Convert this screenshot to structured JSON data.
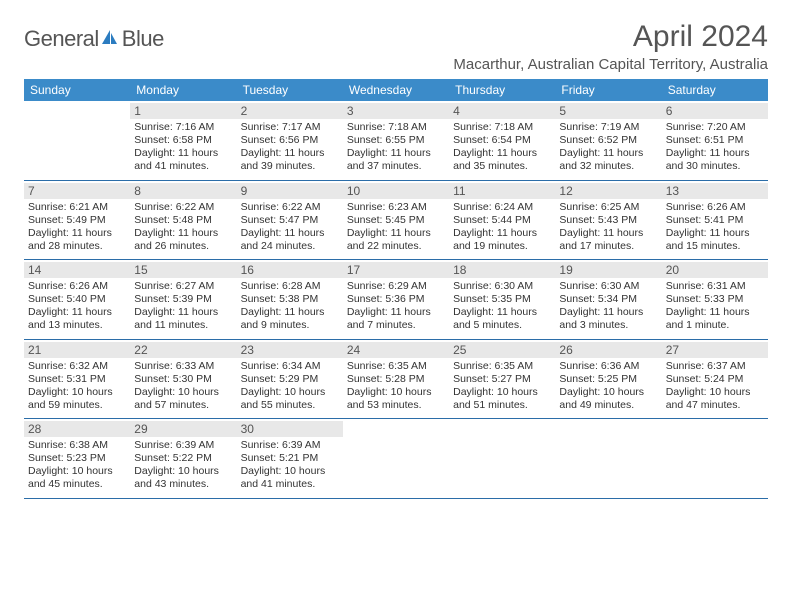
{
  "brand": {
    "name_gray": "General",
    "name_blue": "Blue"
  },
  "title": "April 2024",
  "location": "Macarthur, Australian Capital Territory, Australia",
  "colors": {
    "header_bg": "#3b8bc9",
    "header_text": "#ffffff",
    "daynum_bg": "#e8e8e8",
    "row_border": "#2b6da8",
    "title_color": "#555555",
    "body_text": "#333333"
  },
  "fonts": {
    "title_size": 30,
    "location_size": 15,
    "header_size": 12,
    "body_size": 10.5
  },
  "day_headers": [
    "Sunday",
    "Monday",
    "Tuesday",
    "Wednesday",
    "Thursday",
    "Friday",
    "Saturday"
  ],
  "weeks": [
    [
      null,
      {
        "n": "1",
        "sunrise": "Sunrise: 7:16 AM",
        "sunset": "Sunset: 6:58 PM",
        "dl1": "Daylight: 11 hours",
        "dl2": "and 41 minutes."
      },
      {
        "n": "2",
        "sunrise": "Sunrise: 7:17 AM",
        "sunset": "Sunset: 6:56 PM",
        "dl1": "Daylight: 11 hours",
        "dl2": "and 39 minutes."
      },
      {
        "n": "3",
        "sunrise": "Sunrise: 7:18 AM",
        "sunset": "Sunset: 6:55 PM",
        "dl1": "Daylight: 11 hours",
        "dl2": "and 37 minutes."
      },
      {
        "n": "4",
        "sunrise": "Sunrise: 7:18 AM",
        "sunset": "Sunset: 6:54 PM",
        "dl1": "Daylight: 11 hours",
        "dl2": "and 35 minutes."
      },
      {
        "n": "5",
        "sunrise": "Sunrise: 7:19 AM",
        "sunset": "Sunset: 6:52 PM",
        "dl1": "Daylight: 11 hours",
        "dl2": "and 32 minutes."
      },
      {
        "n": "6",
        "sunrise": "Sunrise: 7:20 AM",
        "sunset": "Sunset: 6:51 PM",
        "dl1": "Daylight: 11 hours",
        "dl2": "and 30 minutes."
      }
    ],
    [
      {
        "n": "7",
        "sunrise": "Sunrise: 6:21 AM",
        "sunset": "Sunset: 5:49 PM",
        "dl1": "Daylight: 11 hours",
        "dl2": "and 28 minutes."
      },
      {
        "n": "8",
        "sunrise": "Sunrise: 6:22 AM",
        "sunset": "Sunset: 5:48 PM",
        "dl1": "Daylight: 11 hours",
        "dl2": "and 26 minutes."
      },
      {
        "n": "9",
        "sunrise": "Sunrise: 6:22 AM",
        "sunset": "Sunset: 5:47 PM",
        "dl1": "Daylight: 11 hours",
        "dl2": "and 24 minutes."
      },
      {
        "n": "10",
        "sunrise": "Sunrise: 6:23 AM",
        "sunset": "Sunset: 5:45 PM",
        "dl1": "Daylight: 11 hours",
        "dl2": "and 22 minutes."
      },
      {
        "n": "11",
        "sunrise": "Sunrise: 6:24 AM",
        "sunset": "Sunset: 5:44 PM",
        "dl1": "Daylight: 11 hours",
        "dl2": "and 19 minutes."
      },
      {
        "n": "12",
        "sunrise": "Sunrise: 6:25 AM",
        "sunset": "Sunset: 5:43 PM",
        "dl1": "Daylight: 11 hours",
        "dl2": "and 17 minutes."
      },
      {
        "n": "13",
        "sunrise": "Sunrise: 6:26 AM",
        "sunset": "Sunset: 5:41 PM",
        "dl1": "Daylight: 11 hours",
        "dl2": "and 15 minutes."
      }
    ],
    [
      {
        "n": "14",
        "sunrise": "Sunrise: 6:26 AM",
        "sunset": "Sunset: 5:40 PM",
        "dl1": "Daylight: 11 hours",
        "dl2": "and 13 minutes."
      },
      {
        "n": "15",
        "sunrise": "Sunrise: 6:27 AM",
        "sunset": "Sunset: 5:39 PM",
        "dl1": "Daylight: 11 hours",
        "dl2": "and 11 minutes."
      },
      {
        "n": "16",
        "sunrise": "Sunrise: 6:28 AM",
        "sunset": "Sunset: 5:38 PM",
        "dl1": "Daylight: 11 hours",
        "dl2": "and 9 minutes."
      },
      {
        "n": "17",
        "sunrise": "Sunrise: 6:29 AM",
        "sunset": "Sunset: 5:36 PM",
        "dl1": "Daylight: 11 hours",
        "dl2": "and 7 minutes."
      },
      {
        "n": "18",
        "sunrise": "Sunrise: 6:30 AM",
        "sunset": "Sunset: 5:35 PM",
        "dl1": "Daylight: 11 hours",
        "dl2": "and 5 minutes."
      },
      {
        "n": "19",
        "sunrise": "Sunrise: 6:30 AM",
        "sunset": "Sunset: 5:34 PM",
        "dl1": "Daylight: 11 hours",
        "dl2": "and 3 minutes."
      },
      {
        "n": "20",
        "sunrise": "Sunrise: 6:31 AM",
        "sunset": "Sunset: 5:33 PM",
        "dl1": "Daylight: 11 hours",
        "dl2": "and 1 minute."
      }
    ],
    [
      {
        "n": "21",
        "sunrise": "Sunrise: 6:32 AM",
        "sunset": "Sunset: 5:31 PM",
        "dl1": "Daylight: 10 hours",
        "dl2": "and 59 minutes."
      },
      {
        "n": "22",
        "sunrise": "Sunrise: 6:33 AM",
        "sunset": "Sunset: 5:30 PM",
        "dl1": "Daylight: 10 hours",
        "dl2": "and 57 minutes."
      },
      {
        "n": "23",
        "sunrise": "Sunrise: 6:34 AM",
        "sunset": "Sunset: 5:29 PM",
        "dl1": "Daylight: 10 hours",
        "dl2": "and 55 minutes."
      },
      {
        "n": "24",
        "sunrise": "Sunrise: 6:35 AM",
        "sunset": "Sunset: 5:28 PM",
        "dl1": "Daylight: 10 hours",
        "dl2": "and 53 minutes."
      },
      {
        "n": "25",
        "sunrise": "Sunrise: 6:35 AM",
        "sunset": "Sunset: 5:27 PM",
        "dl1": "Daylight: 10 hours",
        "dl2": "and 51 minutes."
      },
      {
        "n": "26",
        "sunrise": "Sunrise: 6:36 AM",
        "sunset": "Sunset: 5:25 PM",
        "dl1": "Daylight: 10 hours",
        "dl2": "and 49 minutes."
      },
      {
        "n": "27",
        "sunrise": "Sunrise: 6:37 AM",
        "sunset": "Sunset: 5:24 PM",
        "dl1": "Daylight: 10 hours",
        "dl2": "and 47 minutes."
      }
    ],
    [
      {
        "n": "28",
        "sunrise": "Sunrise: 6:38 AM",
        "sunset": "Sunset: 5:23 PM",
        "dl1": "Daylight: 10 hours",
        "dl2": "and 45 minutes."
      },
      {
        "n": "29",
        "sunrise": "Sunrise: 6:39 AM",
        "sunset": "Sunset: 5:22 PM",
        "dl1": "Daylight: 10 hours",
        "dl2": "and 43 minutes."
      },
      {
        "n": "30",
        "sunrise": "Sunrise: 6:39 AM",
        "sunset": "Sunset: 5:21 PM",
        "dl1": "Daylight: 10 hours",
        "dl2": "and 41 minutes."
      },
      null,
      null,
      null,
      null
    ]
  ]
}
